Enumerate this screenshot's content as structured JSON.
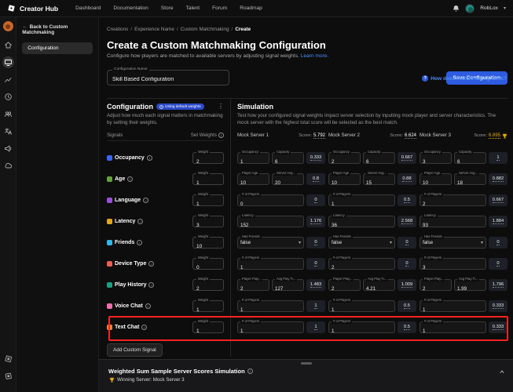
{
  "nav": {
    "brand": "Creator Hub",
    "items": [
      "Dashboard",
      "Documentation",
      "Store",
      "Talent",
      "Forum",
      "Roadmap"
    ],
    "username": "RobLox"
  },
  "rail": {
    "icons": [
      {
        "name": "home"
      },
      {
        "name": "monitor",
        "active": true
      },
      {
        "name": "analytics"
      },
      {
        "name": "clock"
      },
      {
        "name": "group"
      },
      {
        "name": "translate"
      },
      {
        "name": "megaphone"
      },
      {
        "name": "cloud"
      }
    ],
    "bottom_icons": [
      {
        "name": "studio"
      },
      {
        "name": "plugin"
      }
    ]
  },
  "sidebar": {
    "back_label": "Back to Custom Matchmaking",
    "items": [
      {
        "label": "Configuration",
        "active": true
      }
    ]
  },
  "breadcrumb": [
    "Creations",
    "Experience Name",
    "Custom Matchmaking",
    "Create"
  ],
  "header": {
    "title": "Create a Custom Matchmaking Configuration",
    "subtitle": "Configure how players are matched to available servers by adjusting signal weights.",
    "learn_more": "Learn more.",
    "help_link": "How does matchmaking work?",
    "name_field": {
      "label": "Configuration Name",
      "value": "Skill Based Configuration"
    },
    "save_button": "Save Configuration"
  },
  "configuration": {
    "title": "Configuration",
    "badge": "Using default weights",
    "description": "Adjust how much each signal matters in matchmaking by setting their weights.",
    "signals_header": "Signals",
    "weights_header": "Set Weights",
    "weight_label": "Weight",
    "add_button": "Add Custom Signal",
    "signals": [
      {
        "label": "Occupancy",
        "color": "#3a66f5",
        "weight": "2"
      },
      {
        "label": "Age",
        "color": "#61a33c",
        "weight": "1"
      },
      {
        "label": "Language",
        "color": "#9a4ee0",
        "weight": "1"
      },
      {
        "label": "Latency",
        "color": "#e3a61b",
        "weight": "3"
      },
      {
        "label": "Friends",
        "color": "#2fb8ea",
        "weight": "10"
      },
      {
        "label": "Device Type",
        "color": "#ee5d50",
        "weight": "0"
      },
      {
        "label": "Play History",
        "color": "#1ba084",
        "weight": "2"
      },
      {
        "label": "Voice Chat",
        "color": "#ef6fae",
        "weight": "1"
      },
      {
        "label": "Text Chat",
        "color": "#e8883a",
        "weight": "1",
        "highlighted": true
      }
    ]
  },
  "simulation": {
    "title": "Simulation",
    "description": "Test how your configured signal weights impact server selection by inputting mock player and server characteristics. The mock server with the highest total score will be selected as the best match.",
    "score_label": "Score:",
    "servers": [
      {
        "name": "Mock Server 1",
        "total": "5.792",
        "winner": false,
        "rows": [
          {
            "fields": [
              {
                "label": "Occupancy",
                "value": "1"
              },
              {
                "label": "Capacity",
                "value": "6"
              }
            ],
            "score": "0.333"
          },
          {
            "fields": [
              {
                "label": "Player Age",
                "value": "10"
              },
              {
                "label": "Server Avg...",
                "value": "20"
              }
            ],
            "score": "0.8"
          },
          {
            "fields": [
              {
                "label": "# of Players",
                "value": "0"
              }
            ],
            "score": "0"
          },
          {
            "fields": [
              {
                "label": "Latency",
                "value": "152"
              }
            ],
            "score": "1.176"
          },
          {
            "fields": [
              {
                "label": "Has Friends",
                "value": "false",
                "select": true
              }
            ],
            "score": "0"
          },
          {
            "fields": [
              {
                "label": "# of Players",
                "value": "1"
              }
            ],
            "score": "0"
          },
          {
            "fields": [
              {
                "label": "Player Play...",
                "value": "2"
              },
              {
                "label": "Avg Play Ti...",
                "value": "127"
              }
            ],
            "score": "1.483"
          },
          {
            "fields": [
              {
                "label": "# of Players",
                "value": "1"
              }
            ],
            "score": "1"
          },
          {
            "fields": [
              {
                "label": "# of Players",
                "value": "1"
              }
            ],
            "score": "1"
          }
        ]
      },
      {
        "name": "Mock Server 2",
        "total": "6.624",
        "winner": false,
        "rows": [
          {
            "fields": [
              {
                "label": "Occupancy",
                "value": "2"
              },
              {
                "label": "Capacity",
                "value": "6"
              }
            ],
            "score": "0.667"
          },
          {
            "fields": [
              {
                "label": "Player Age",
                "value": "10"
              },
              {
                "label": "Server Avg...",
                "value": "15"
              }
            ],
            "score": "0.88"
          },
          {
            "fields": [
              {
                "label": "# of Players",
                "value": "1"
              }
            ],
            "score": "0.5"
          },
          {
            "fields": [
              {
                "label": "Latency",
                "value": "36"
              }
            ],
            "score": "2.568"
          },
          {
            "fields": [
              {
                "label": "Has Friends",
                "value": "false",
                "select": true
              }
            ],
            "score": "0"
          },
          {
            "fields": [
              {
                "label": "# of Players",
                "value": "2"
              }
            ],
            "score": "0"
          },
          {
            "fields": [
              {
                "label": "Player Play...",
                "value": "2"
              },
              {
                "label": "Avg Play Ti...",
                "value": "4.21"
              }
            ],
            "score": "1.009"
          },
          {
            "fields": [
              {
                "label": "# of Players",
                "value": "1"
              }
            ],
            "score": "0.5"
          },
          {
            "fields": [
              {
                "label": "# of Players",
                "value": "1"
              }
            ],
            "score": "0.5"
          }
        ]
      },
      {
        "name": "Mock Server 3",
        "total": "6.895",
        "winner": true,
        "rows": [
          {
            "fields": [
              {
                "label": "Occupancy",
                "value": "3"
              },
              {
                "label": "Capacity",
                "value": "6"
              }
            ],
            "score": "1"
          },
          {
            "fields": [
              {
                "label": "Player Age",
                "value": "10"
              },
              {
                "label": "Server Avg...",
                "value": "18"
              }
            ],
            "score": "0.882"
          },
          {
            "fields": [
              {
                "label": "# of Players",
                "value": "2"
              }
            ],
            "score": "0.667"
          },
          {
            "fields": [
              {
                "label": "Latency",
                "value": "93"
              }
            ],
            "score": "1.884"
          },
          {
            "fields": [
              {
                "label": "Has Friends",
                "value": "false",
                "select": true
              }
            ],
            "score": "0"
          },
          {
            "fields": [
              {
                "label": "# of Players",
                "value": "3"
              }
            ],
            "score": "0"
          },
          {
            "fields": [
              {
                "label": "Player Play...",
                "value": "2"
              },
              {
                "label": "Avg Play Ti...",
                "value": "1.99"
              }
            ],
            "score": "1.796"
          },
          {
            "fields": [
              {
                "label": "# of Players",
                "value": "1"
              }
            ],
            "score": "0.333"
          },
          {
            "fields": [
              {
                "label": "# of Players",
                "value": "1"
              }
            ],
            "score": "0.333"
          }
        ]
      }
    ]
  },
  "bottom_panel": {
    "title": "Weighted Sum Sample Server Scores Simulation",
    "winner_label": "Winning Server: Mock Server 3"
  },
  "colors": {
    "accent_blue": "#2e5ce0",
    "link_blue": "#4d8df5",
    "winner_gold": "#e2a90f",
    "annotation_red": "#ff2222"
  }
}
